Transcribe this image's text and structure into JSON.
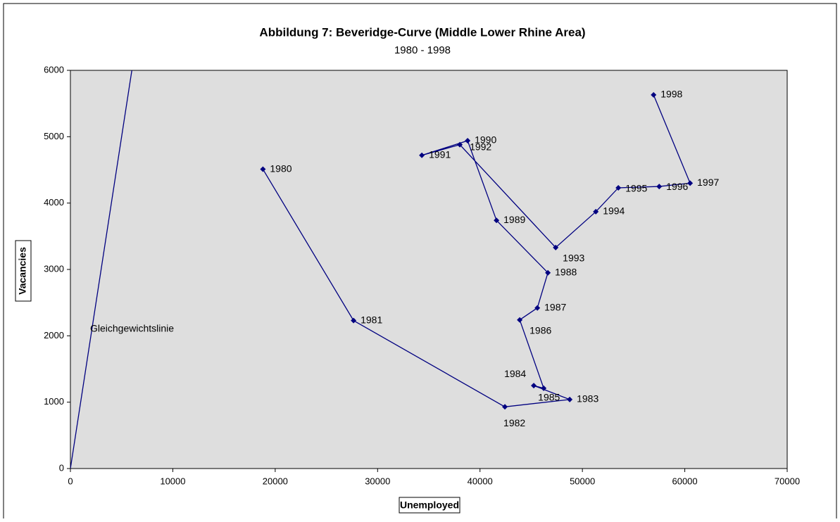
{
  "chart_data": {
    "type": "scatter",
    "title": "Abbildung 7: Beveridge-Curve (Middle Lower Rhine Area)",
    "subtitle": "1980 - 1998",
    "xlabel": "Unemployed",
    "ylabel": "Vacancies",
    "xlim": [
      0,
      70000
    ],
    "ylim": [
      0,
      6000
    ],
    "xticks": [
      0,
      10000,
      20000,
      30000,
      40000,
      50000,
      60000,
      70000
    ],
    "yticks": [
      0,
      1000,
      2000,
      3000,
      4000,
      5000,
      6000
    ],
    "grid": false,
    "series": [
      {
        "name": "Beveridge-Curve",
        "color": "#000080",
        "labels": [
          "1980",
          "1981",
          "1982",
          "1983",
          "1984",
          "1985",
          "1986",
          "1987",
          "1988",
          "1989",
          "1990",
          "1991",
          "1992",
          "1993",
          "1994",
          "1995",
          "1996",
          "1997",
          "1998"
        ],
        "x": [
          18800,
          27650,
          42430,
          48760,
          45250,
          46220,
          43880,
          45600,
          46630,
          41610,
          38790,
          34320,
          38030,
          47390,
          51310,
          53510,
          57500,
          60520,
          56950
        ],
        "values": [
          4510,
          2230,
          930,
          1040,
          1250,
          1210,
          2240,
          2420,
          2950,
          3740,
          4940,
          4720,
          4880,
          3330,
          3870,
          4230,
          4250,
          4300,
          5630
        ]
      },
      {
        "name": "Gleichgewichtslinie",
        "color": "#000080",
        "x": [
          0,
          6000
        ],
        "values": [
          0,
          6000
        ]
      }
    ]
  }
}
